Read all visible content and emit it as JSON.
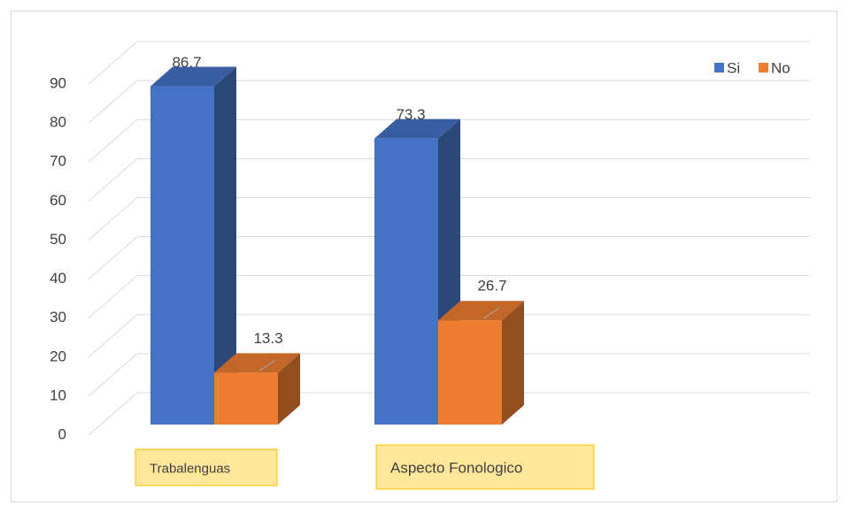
{
  "chart_data": {
    "type": "bar3d",
    "categories": [
      "Trabalenguas",
      "Aspecto Fonologico"
    ],
    "series": [
      {
        "name": "Si",
        "color": "#4472c4",
        "values": [
          86.7,
          73.3
        ]
      },
      {
        "name": "No",
        "color": "#ed7d31",
        "values": [
          13.3,
          26.7
        ]
      }
    ],
    "ylim": [
      0,
      90
    ],
    "yticks": [
      0,
      10,
      20,
      30,
      40,
      50,
      60,
      70,
      80,
      90
    ],
    "grid": true,
    "legend": "top-right"
  }
}
